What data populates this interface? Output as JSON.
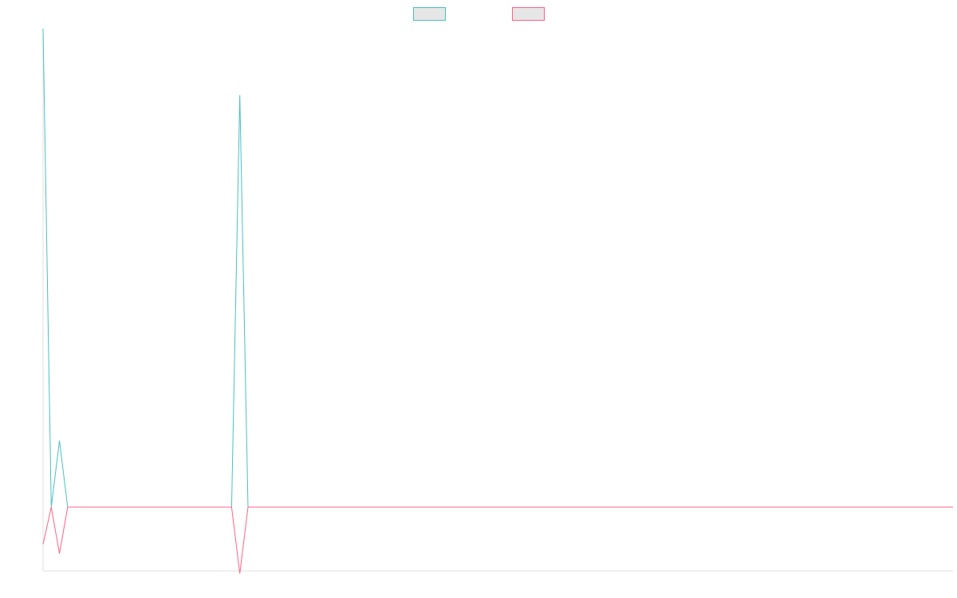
{
  "chart_data": {
    "type": "line",
    "title": "",
    "xlabel": "",
    "ylabel": "",
    "x": [
      0,
      1,
      2,
      3,
      4,
      5,
      6,
      7,
      8,
      9,
      10,
      11,
      12,
      13,
      14,
      15,
      16,
      17,
      18,
      19,
      20,
      21,
      22,
      23,
      24,
      25,
      26,
      27,
      28,
      29,
      30,
      31,
      32,
      33,
      34,
      35,
      36,
      37,
      38,
      39,
      40,
      41,
      42,
      43,
      44,
      45,
      46,
      47,
      48,
      49,
      50,
      51,
      52,
      53,
      54,
      55,
      56,
      57,
      58,
      59,
      60,
      61,
      62,
      63,
      64,
      65,
      66,
      67,
      68,
      69,
      70,
      71,
      72,
      73,
      74,
      75,
      76,
      77,
      78,
      79,
      80,
      81,
      82,
      83,
      84,
      85,
      86,
      87,
      88,
      89,
      90,
      91,
      92,
      93,
      94,
      95,
      96,
      97,
      98,
      99,
      100,
      101,
      102,
      103,
      104,
      105,
      106,
      107,
      108,
      109,
      110,
      111
    ],
    "series": [
      {
        "name": "",
        "color": "#4bc0c0",
        "values": [
          3.6,
          0,
          0.5,
          0,
          0,
          0,
          0,
          0,
          0,
          0,
          0,
          0,
          0,
          0,
          0,
          0,
          0,
          0,
          0,
          0,
          0,
          0,
          0,
          0,
          3.1,
          0,
          0,
          0,
          0,
          0,
          0,
          0,
          0,
          0,
          0,
          0,
          0,
          0,
          0,
          0,
          0,
          0,
          0,
          0,
          0,
          0,
          0,
          0,
          0,
          0,
          0,
          0,
          0,
          0,
          0,
          0,
          0,
          0,
          0,
          0,
          0,
          0,
          0,
          0,
          0,
          0,
          0,
          0,
          0,
          0,
          0,
          0,
          0,
          0,
          0,
          0,
          0,
          0,
          0,
          0,
          0,
          0,
          0,
          0,
          0,
          0,
          0,
          0,
          0,
          0,
          0,
          0,
          0,
          0,
          0,
          0,
          0,
          0,
          0,
          0,
          0,
          0,
          0,
          0,
          0,
          0,
          0,
          0,
          0,
          0,
          0,
          0
        ]
      },
      {
        "name": "",
        "color": "#ff6384",
        "values": [
          -0.28,
          0,
          -0.35,
          0,
          0,
          0,
          0,
          0,
          0,
          0,
          0,
          0,
          0,
          0,
          0,
          0,
          0,
          0,
          0,
          0,
          0,
          0,
          0,
          0,
          -0.5,
          0,
          0,
          0,
          0,
          0,
          0,
          0,
          0,
          0,
          0,
          0,
          0,
          0,
          0,
          0,
          0,
          0,
          0,
          0,
          0,
          0,
          0,
          0,
          0,
          0,
          0,
          0,
          0,
          0,
          0,
          0,
          0,
          0,
          0,
          0,
          0,
          0,
          0,
          0,
          0,
          0,
          0,
          0,
          0,
          0,
          0,
          0,
          0,
          0,
          0,
          0,
          0,
          0,
          0,
          0,
          0,
          0,
          0,
          0,
          0,
          0,
          0,
          0,
          0,
          0,
          0,
          0,
          0,
          0,
          0,
          0,
          0,
          0,
          0,
          0,
          0,
          0,
          0,
          0,
          0,
          0,
          0,
          0,
          0,
          0,
          0,
          0
        ]
      }
    ],
    "ylim": [
      -0.48,
      3.6
    ],
    "xlim": [
      0,
      111
    ],
    "grid": false,
    "legend_position": "top-center"
  }
}
